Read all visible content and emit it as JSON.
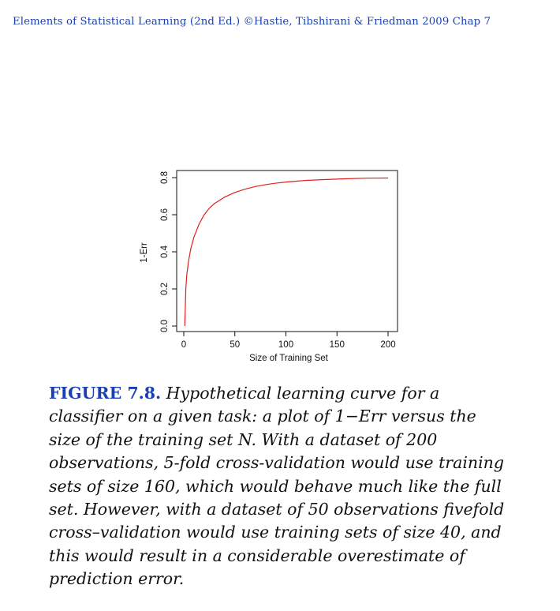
{
  "header": {
    "text": "Elements of Statistical Learning (2nd Ed.) ©Hastie, Tibshirani & Friedman 2009  Chap 7"
  },
  "chart_data": {
    "type": "line",
    "xlabel": "Size of Training Set",
    "ylabel": "1-Err",
    "xlim": [
      0,
      200
    ],
    "ylim": [
      0,
      0.8
    ],
    "xticks": [
      "0",
      "50",
      "100",
      "150",
      "200"
    ],
    "yticks": [
      "0.0",
      "0.2",
      "0.4",
      "0.6",
      "0.8"
    ],
    "grid": false,
    "series": [
      {
        "color": "#e02020",
        "x": [
          1,
          2,
          3,
          5,
          7,
          10,
          15,
          20,
          25,
          30,
          40,
          50,
          60,
          70,
          80,
          90,
          100,
          110,
          120,
          140,
          160,
          180,
          200
        ],
        "y": [
          0.0,
          0.2,
          0.28,
          0.36,
          0.42,
          0.48,
          0.55,
          0.6,
          0.635,
          0.66,
          0.695,
          0.72,
          0.738,
          0.752,
          0.762,
          0.77,
          0.776,
          0.781,
          0.785,
          0.79,
          0.794,
          0.797,
          0.798
        ]
      }
    ]
  },
  "caption": {
    "label": "FIGURE 7.8.",
    "text": "Hypothetical learning curve for a classifier on a given task: a plot of 1−Err versus the size of the training set N. With a dataset of 200 observations, 5-fold cross-validation would use training sets of size 160, which would behave much like the full set. However, with a dataset of 50 observations fivefold cross–validation would use training sets of size 40, and this would result in a considerable overestimate of prediction error."
  }
}
